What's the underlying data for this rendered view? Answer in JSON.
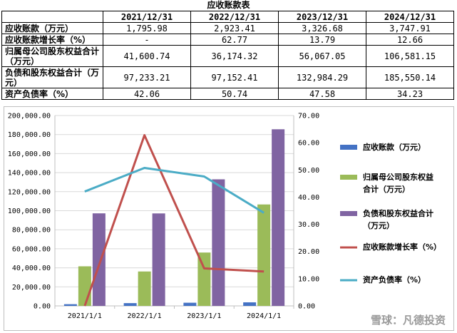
{
  "table": {
    "title": "应收账款表",
    "corner": "",
    "headers": [
      "2021/12/31",
      "2022/12/31",
      "2023/12/31",
      "2024/12/31"
    ],
    "rows": [
      {
        "label": "应收账款（万元）",
        "values": [
          "1,795.98",
          "2,923.41",
          "3,326.68",
          "3,747.91"
        ]
      },
      {
        "label": "应收账款增长率（%）",
        "values": [
          "-",
          "62.77",
          "13.79",
          "12.66"
        ]
      },
      {
        "label": "归属母公司股东权益合计（万元）",
        "values": [
          "41,600.74",
          "36,174.32",
          "56,067.05",
          "106,581.15"
        ]
      },
      {
        "label": "负债和股东权益合计（万元）",
        "values": [
          "97,233.21",
          "97,152.41",
          "132,984.29",
          "185,550.14"
        ]
      },
      {
        "label": "资产负债率（%）",
        "values": [
          "42.06",
          "50.74",
          "47.58",
          "34.23"
        ]
      }
    ]
  },
  "chart_data": {
    "type": "bar",
    "categories": [
      "2021/1/1",
      "2022/1/1",
      "2023/1/1",
      "2024/1/1"
    ],
    "y_left": {
      "min": 0,
      "max": 200000,
      "step": 20000,
      "tick_labels": [
        "0.00",
        "20,000.00",
        "40,000.00",
        "60,000.00",
        "80,000.00",
        "100,000.00",
        "120,000.00",
        "140,000.00",
        "160,000.00",
        "180,000.00",
        "200,000.00"
      ]
    },
    "y_right": {
      "min": 0,
      "max": 70,
      "step": 10,
      "tick_labels": [
        "0.00",
        "10.00",
        "20.00",
        "30.00",
        "40.00",
        "50.00",
        "60.00",
        "70.00"
      ]
    },
    "bar_series": [
      {
        "name": "应收账款（万元）",
        "color": "#4472C4",
        "values": [
          1795.98,
          2923.41,
          3326.68,
          3747.91
        ]
      },
      {
        "name": "归属母公司股东权益合计（万元）",
        "color": "#9BBB59",
        "values": [
          41600.74,
          36174.32,
          56067.05,
          106581.15
        ]
      },
      {
        "name": "负债和股东权益合计（万元）",
        "color": "#8064A2",
        "values": [
          97233.21,
          97152.41,
          132984.29,
          185550.14
        ]
      }
    ],
    "line_series": [
      {
        "name": "应收账款增长率（%）",
        "color": "#C0504D",
        "axis": "right",
        "values": [
          0,
          62.77,
          13.79,
          12.66
        ]
      },
      {
        "name": "资产负债率（%）",
        "color": "#4BACC6",
        "axis": "right",
        "values": [
          42.06,
          50.74,
          47.58,
          34.23
        ]
      }
    ],
    "legend": {
      "position": "right",
      "entries": [
        {
          "lines": [
            "应收账款（万元）"
          ],
          "color": "#4472C4",
          "kind": "bar"
        },
        {
          "lines": [
            "归属母公司股东权益",
            "合计（万元）"
          ],
          "color": "#9BBB59",
          "kind": "bar"
        },
        {
          "lines": [
            "负债和股东权益合计",
            "（万元）"
          ],
          "color": "#8064A2",
          "kind": "bar"
        },
        {
          "lines": [
            "应收账款增长率（%）"
          ],
          "color": "#C0504D",
          "kind": "line"
        },
        {
          "lines": [
            "资产负债率（%）"
          ],
          "color": "#4BACC6",
          "kind": "line"
        }
      ]
    },
    "grid": true
  },
  "watermark": "雪球：凡德投资"
}
